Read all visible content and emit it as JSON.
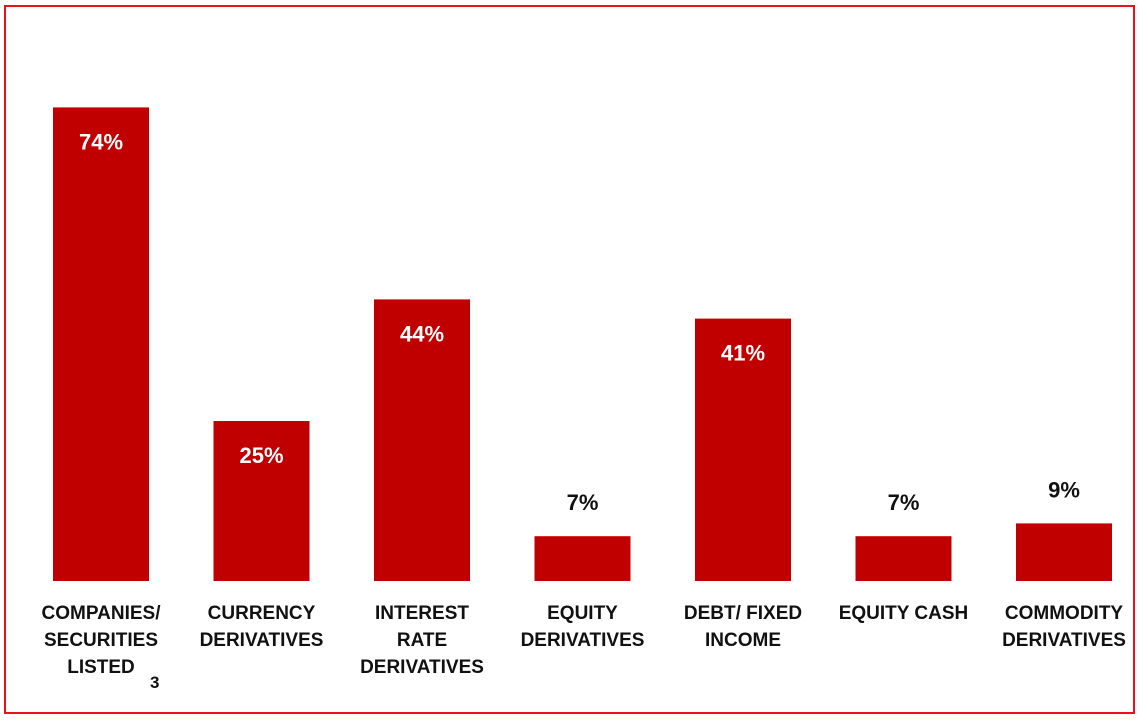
{
  "chart_data": {
    "type": "bar",
    "title": "",
    "xlabel": "",
    "ylabel": "",
    "ylim": [
      0,
      80
    ],
    "grid": false,
    "legend": "none",
    "bar_color": "#c00000",
    "frame_color": "#e8121b",
    "categories": [
      [
        "COMPANIES/",
        "SECURITIES",
        "LISTED"
      ],
      [
        "CURRENCY",
        "DERIVATIVES"
      ],
      [
        "INTEREST",
        "RATE",
        "DERIVATIVES"
      ],
      [
        "EQUITY",
        "DERIVATIVES"
      ],
      [
        "DEBT/ FIXED",
        "INCOME"
      ],
      [
        "EQUITY CASH"
      ],
      [
        "COMMODITY",
        "DERIVATIVES"
      ]
    ],
    "values": [
      74,
      25,
      44,
      7,
      41,
      7,
      9
    ],
    "data_labels": [
      "74%",
      "25%",
      "44%",
      "7%",
      "41%",
      "7%",
      "9%"
    ],
    "footnote_marker": "3"
  }
}
